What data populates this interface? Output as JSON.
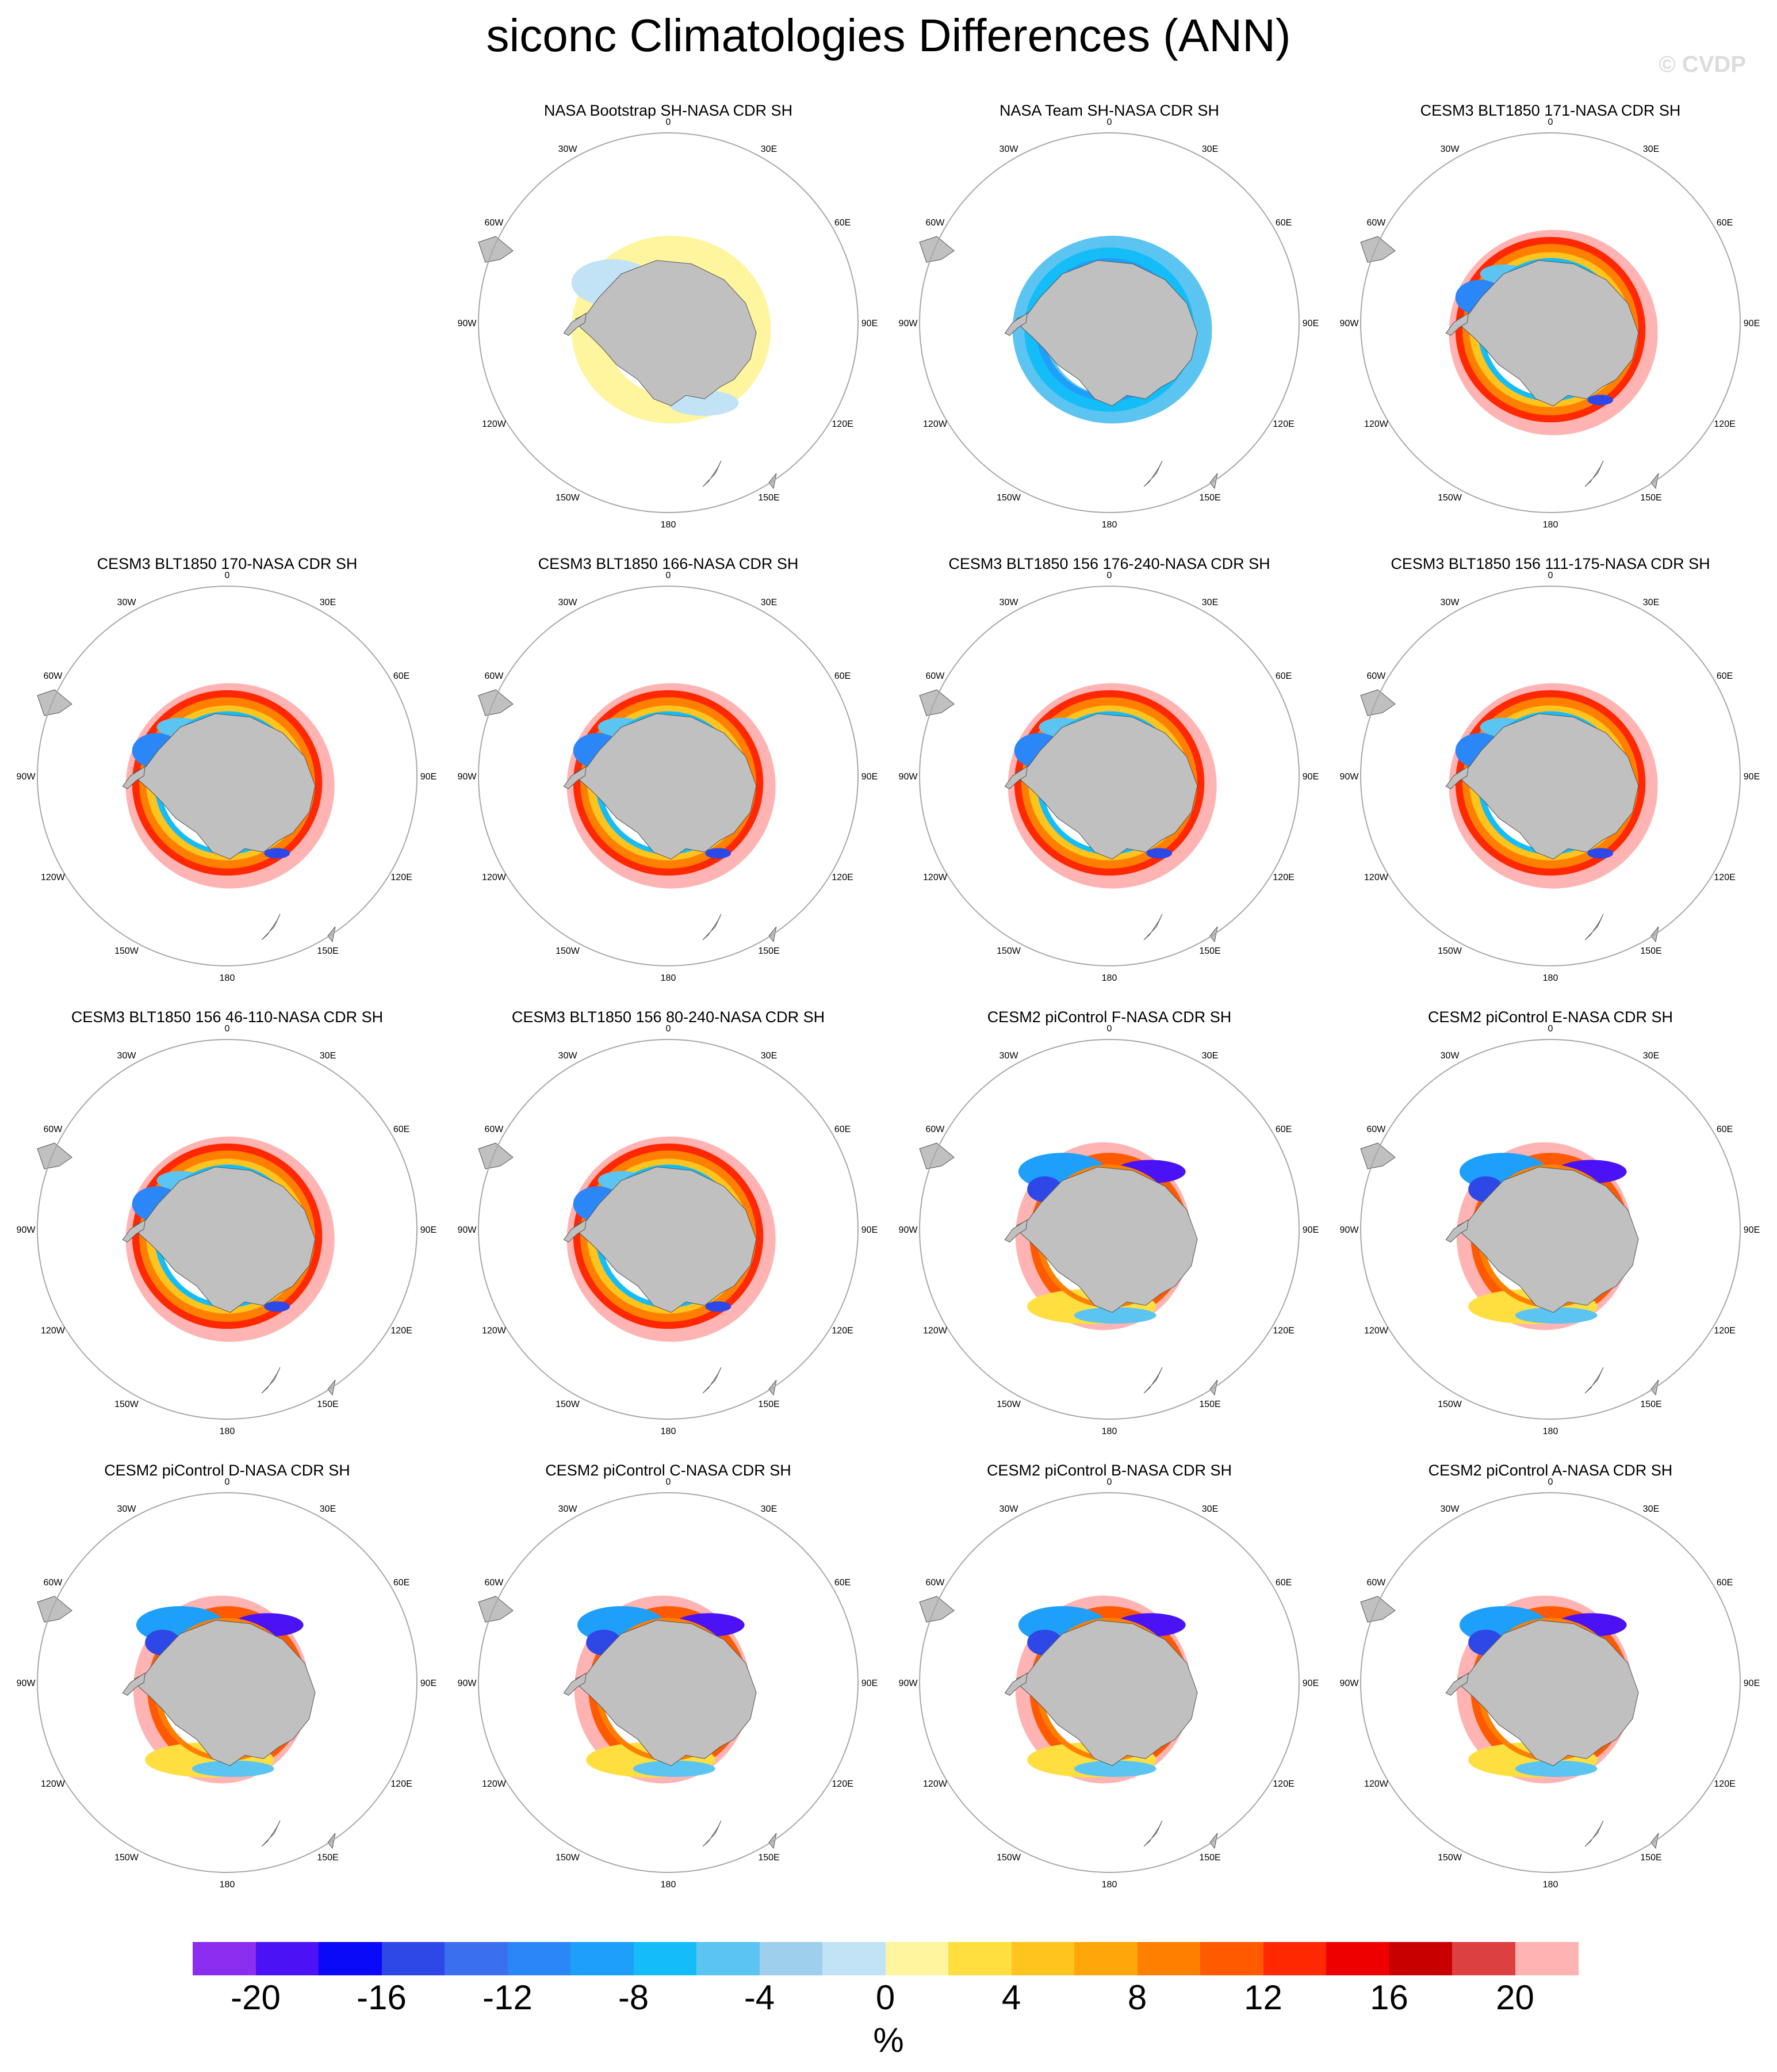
{
  "title": "siconc Climatologies Differences (ANN)",
  "watermark": "© CVDP",
  "longitude_labels": [
    "0",
    "30E",
    "60E",
    "90E",
    "120E",
    "150E",
    "180",
    "150W",
    "120W",
    "90W",
    "60W",
    "30W"
  ],
  "land_color": "#c0c0c0",
  "circle_color": "#a8a8a8",
  "panels": [
    {
      "title": "NASA Bootstrap SH-NASA CDR SH",
      "pattern": "bootstrap"
    },
    {
      "title": "NASA Team SH-NASA CDR SH",
      "pattern": "team"
    },
    {
      "title": "CESM3 BLT1850 171-NASA CDR SH",
      "pattern": "cesm3"
    },
    {
      "title": "CESM3 BLT1850 170-NASA CDR SH",
      "pattern": "cesm3"
    },
    {
      "title": "CESM3 BLT1850 166-NASA CDR SH",
      "pattern": "cesm3"
    },
    {
      "title": "CESM3 BLT1850 156 176-240-NASA CDR SH",
      "pattern": "cesm3"
    },
    {
      "title": "CESM3 BLT1850 156 111-175-NASA CDR SH",
      "pattern": "cesm3"
    },
    {
      "title": "CESM3 BLT1850 156 46-110-NASA CDR SH",
      "pattern": "cesm3"
    },
    {
      "title": "CESM3 BLT1850 156 80-240-NASA CDR SH",
      "pattern": "cesm3"
    },
    {
      "title": "CESM2 piControl F-NASA CDR SH",
      "pattern": "cesm2"
    },
    {
      "title": "CESM2 piControl E-NASA CDR SH",
      "pattern": "cesm2"
    },
    {
      "title": "CESM2 piControl D-NASA CDR SH",
      "pattern": "cesm2"
    },
    {
      "title": "CESM2 piControl C-NASA CDR SH",
      "pattern": "cesm2"
    },
    {
      "title": "CESM2 piControl B-NASA CDR SH",
      "pattern": "cesm2"
    },
    {
      "title": "CESM2 piControl A-NASA CDR SH",
      "pattern": "cesm2"
    }
  ],
  "colorbar": {
    "unit": "%",
    "colors": [
      "#8b2ef0",
      "#4a12f5",
      "#0a0af8",
      "#2e48e8",
      "#3a6ff0",
      "#2b86f8",
      "#1ea0fa",
      "#15bdf8",
      "#5cc4f0",
      "#9ed0ee",
      "#c2e2f6",
      "#fff59e",
      "#ffdf40",
      "#ffc41e",
      "#ffa60a",
      "#ff8000",
      "#ff5a00",
      "#ff2800",
      "#ee0000",
      "#c80000",
      "#dc4040",
      "#ffb3b3"
    ],
    "labels": [
      "-20",
      "-16",
      "-12",
      "-8",
      "-4",
      "0",
      "4",
      "8",
      "12",
      "16",
      "20"
    ]
  }
}
